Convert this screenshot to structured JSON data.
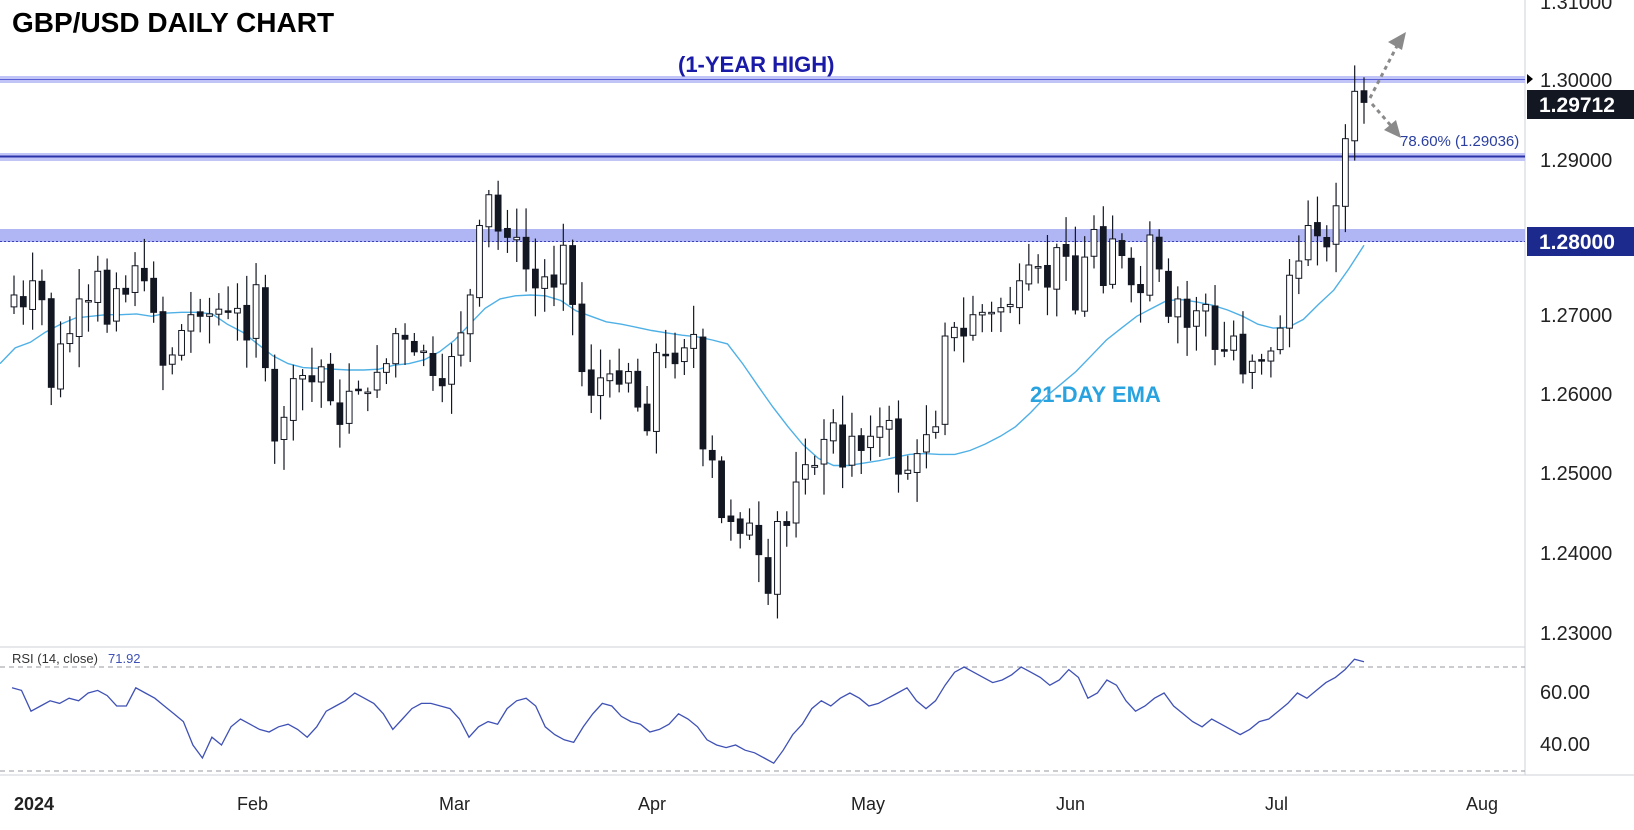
{
  "chart_data": [
    {
      "type": "candlestick",
      "title": "GBP/USD DAILY CHART",
      "y_axis": {
        "ticks": [
          "1.23000",
          "1.24000",
          "1.25000",
          "1.26000",
          "1.27000",
          "1.28000",
          "1.29000",
          "1.30000",
          "1.31000"
        ],
        "ylim": [
          1.23,
          1.31
        ]
      },
      "x_axis": {
        "ticks": [
          "2024",
          "Feb",
          "Mar",
          "Apr",
          "May",
          "Jun",
          "Jul",
          "Aug"
        ]
      },
      "annotations": {
        "one_year_high_label": "(1-YEAR HIGH)",
        "ema_label": "21-DAY EMA",
        "fib_label": "78.60% (1.29036)",
        "current_price": "1.29712",
        "key_level": "1.28000"
      },
      "horizontal_levels": [
        1.3,
        1.29036,
        1.2805
      ],
      "close_series": [
        1.2727,
        1.2712,
        1.2745,
        1.2721,
        1.261,
        1.2665,
        1.2678,
        1.2722,
        1.272,
        1.2757,
        1.269,
        1.2735,
        1.2728,
        1.2764,
        1.2745,
        1.2705,
        1.2638,
        1.2651,
        1.2682,
        1.2702,
        1.27,
        1.2703,
        1.2709,
        1.2706,
        1.271,
        1.267,
        1.274,
        1.2635,
        1.2542,
        1.2572,
        1.2621,
        1.2625,
        1.2617,
        1.2636,
        1.2593,
        1.2563,
        1.2605,
        1.2607,
        1.2604,
        1.2629,
        1.264,
        1.2678,
        1.2671,
        1.2655,
        1.2656,
        1.2625,
        1.2612,
        1.2649,
        1.2679,
        1.2727,
        1.2815,
        1.2854,
        1.2808,
        1.28,
        1.28,
        1.276,
        1.2736,
        1.275,
        1.2737,
        1.279,
        1.2715,
        1.263,
        1.26,
        1.2622,
        1.2627,
        1.2614,
        1.263,
        1.2585,
        1.2555,
        1.2654,
        1.265,
        1.264,
        1.266,
        1.2677,
        1.2532,
        1.2518,
        1.2445,
        1.244,
        1.2425,
        1.2438,
        1.2398,
        1.2349,
        1.244,
        1.2435,
        1.249,
        1.2512,
        1.2511,
        1.2544,
        1.2565,
        1.2509,
        1.2548,
        1.253,
        1.2548,
        1.256,
        1.2568,
        1.25,
        1.2505,
        1.2526,
        1.255,
        1.256,
        1.2675,
        1.2686,
        1.2675,
        1.2702,
        1.2705,
        1.2705,
        1.2711,
        1.2715,
        1.2745,
        1.2765,
        1.2763,
        1.2737,
        1.2787,
        1.2776,
        1.2708,
        1.2775,
        1.281,
        1.2739,
        1.2798,
        1.2777,
        1.274,
        1.273,
        1.2803,
        1.276,
        1.27,
        1.2722,
        1.2686,
        1.2707,
        1.2715,
        1.2658,
        1.2657,
        1.2675,
        1.2627,
        1.2643,
        1.2645,
        1.2656,
        1.2685,
        1.2752,
        1.277,
        1.2815,
        1.2802,
        1.2788,
        1.284,
        1.2925,
        1.2985,
        1.2971
      ],
      "ema21_series": [
        1.264,
        1.266,
        1.2667,
        1.268,
        1.269,
        1.2698,
        1.27,
        1.2702,
        1.2702,
        1.2703,
        1.27,
        1.2704,
        1.2705,
        1.2705,
        1.2703,
        1.269,
        1.268,
        1.2665,
        1.265,
        1.264,
        1.2635,
        1.2634,
        1.2633,
        1.2632,
        1.2632,
        1.2633,
        1.2638,
        1.264,
        1.2645,
        1.2655,
        1.267,
        1.269,
        1.271,
        1.2722,
        1.2726,
        1.2727,
        1.2726,
        1.272,
        1.2707,
        1.27,
        1.2693,
        1.269,
        1.2686,
        1.2682,
        1.2679,
        1.2676,
        1.2674,
        1.267,
        1.2665,
        1.264,
        1.2612,
        1.2585,
        1.256,
        1.2537,
        1.252,
        1.2511,
        1.2511,
        1.2514,
        1.2517,
        1.2521,
        1.2525,
        1.2526,
        1.2525,
        1.2525,
        1.253,
        1.2538,
        1.2548,
        1.256,
        1.2578,
        1.2598,
        1.2614,
        1.263,
        1.265,
        1.267,
        1.2685,
        1.27,
        1.271,
        1.272,
        1.2721,
        1.2718,
        1.2714,
        1.2708,
        1.27,
        1.269,
        1.2685,
        1.2686,
        1.2696,
        1.2715,
        1.2733,
        1.276,
        1.279
      ]
    },
    {
      "type": "line",
      "title": "RSI (14, close)",
      "legend_value": "71.92",
      "y_axis": {
        "ticks": [
          "40.00",
          "60.00"
        ]
      },
      "levels": [
        70,
        30
      ],
      "values": [
        62,
        61,
        53,
        55,
        57,
        56,
        58,
        57,
        60,
        61,
        59,
        55,
        55,
        62,
        60,
        58,
        55,
        52,
        49,
        40,
        35,
        43,
        40,
        47,
        50,
        48,
        46,
        45,
        47,
        48,
        46,
        43,
        47,
        53,
        55,
        57,
        60,
        58,
        56,
        52,
        46,
        50,
        54,
        56,
        56,
        55,
        54,
        50,
        43,
        47,
        49,
        48,
        54,
        57,
        58,
        55,
        47,
        44,
        42,
        41,
        47,
        52,
        56,
        55,
        51,
        49,
        48,
        45,
        46,
        48,
        52,
        50,
        47,
        42,
        40,
        39,
        40,
        38,
        37,
        35,
        33,
        38,
        44,
        48,
        54,
        57,
        55,
        58,
        60,
        58,
        55,
        56,
        58,
        60,
        62,
        57,
        54,
        57,
        63,
        68,
        70,
        68,
        66,
        64,
        65,
        67,
        70,
        68,
        66,
        63,
        65,
        69,
        66,
        58,
        60,
        65,
        63,
        57,
        53,
        55,
        58,
        60,
        55,
        52,
        49,
        47,
        50,
        48,
        46,
        44,
        46,
        49,
        50,
        53,
        56,
        60,
        58,
        61,
        64,
        66,
        69,
        73,
        72
      ]
    }
  ]
}
